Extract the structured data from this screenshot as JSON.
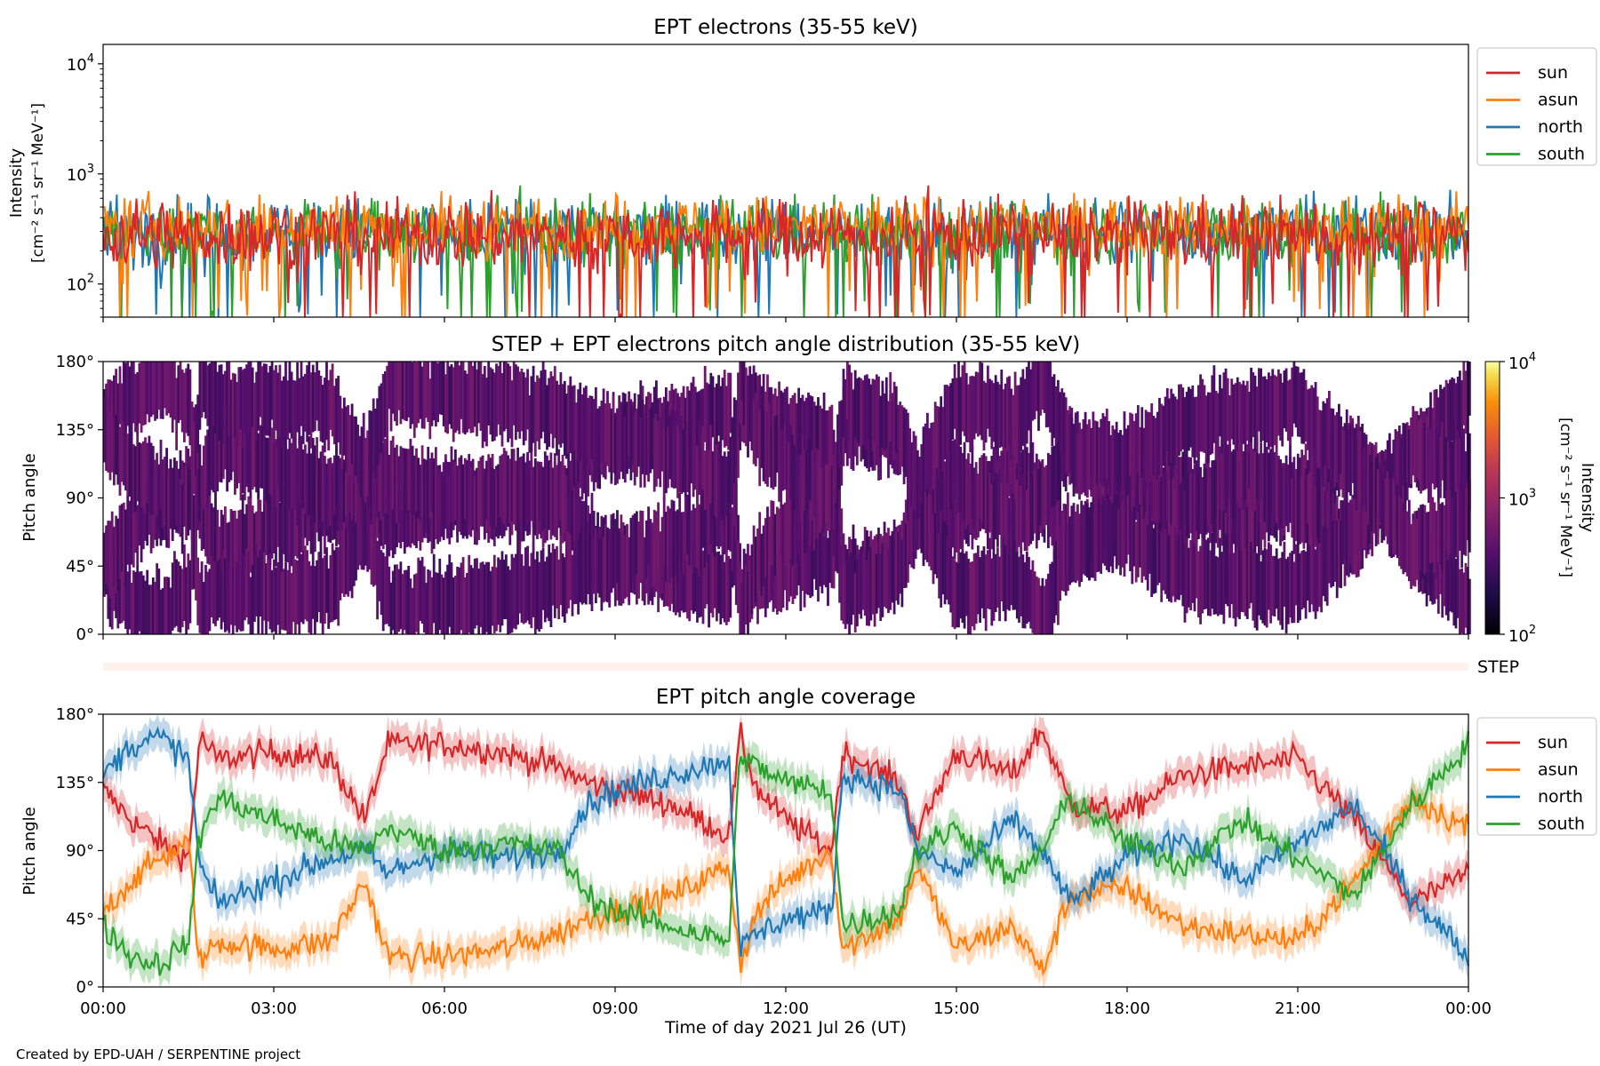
{
  "colors": {
    "sun": "#d62728",
    "asun": "#ff7f0e",
    "north": "#1f77b4",
    "south": "#2ca02c",
    "axis": "#000000",
    "step_strip": "#fdf1ea"
  },
  "chart_data": [
    {
      "type": "line",
      "title": "EPT electrons (35-55 keV)",
      "ylabel": [
        "Intensity",
        "[cm⁻² s⁻¹ sr⁻¹ MeV⁻¹]"
      ],
      "yscale": "log",
      "ylim": [
        50,
        15000
      ],
      "yticks": [
        {
          "value": 100,
          "base": "10",
          "exp": "2"
        },
        {
          "value": 1000,
          "base": "10",
          "exp": "3"
        },
        {
          "value": 10000,
          "base": "10",
          "exp": "4"
        }
      ],
      "xlim_hours": [
        0,
        24
      ],
      "legend": [
        "sun",
        "asun",
        "north",
        "south"
      ],
      "legend_position": "outside right, top",
      "series_note": "noisy intensity around 2×10² – 5×10² for all four viewing directions",
      "series": [
        {
          "name": "north",
          "typical": 300,
          "spread": 0.28
        },
        {
          "name": "south",
          "typical": 300,
          "spread": 0.28
        },
        {
          "name": "asun",
          "typical": 330,
          "spread": 0.26
        },
        {
          "name": "sun",
          "typical": 280,
          "spread": 0.3
        }
      ]
    },
    {
      "type": "heatmap",
      "title": "STEP + EPT electrons pitch angle distribution (35-55 keV)",
      "ylabel": "Pitch angle",
      "ylim": [
        0,
        180
      ],
      "yticks": [
        "0°",
        "45°",
        "90°",
        "135°",
        "180°"
      ],
      "xlim_hours": [
        0,
        24
      ],
      "colorbar": {
        "label": [
          "Intensity",
          "[cm⁻² s⁻¹ sr⁻¹ MeV⁻¹]"
        ],
        "scale": "log",
        "range": [
          100,
          10000
        ],
        "ticks": [
          {
            "base": "10",
            "exp": "2"
          },
          {
            "base": "10",
            "exp": "3"
          },
          {
            "base": "10",
            "exp": "4"
          }
        ],
        "colormap": "inferno"
      },
      "note": "coverage bands of the four telescopes follow the pitch-angle coverage panel below"
    },
    {
      "type": "strip",
      "label": "STEP"
    },
    {
      "type": "line",
      "title": "EPT pitch angle coverage",
      "ylabel": "Pitch angle",
      "ylim": [
        0,
        180
      ],
      "yticks": [
        "0°",
        "45°",
        "90°",
        "135°",
        "180°"
      ],
      "xlim_hours": [
        0,
        24
      ],
      "xticks": [
        "00:00",
        "03:00",
        "06:00",
        "09:00",
        "12:00",
        "15:00",
        "18:00",
        "21:00",
        "00:00"
      ],
      "xlabel": "Time of day 2021 Jul 26 (UT)",
      "legend": [
        "sun",
        "asun",
        "north",
        "south"
      ],
      "legend_position": "outside right, top",
      "band_halfwidth_deg": 10,
      "series": [
        {
          "name": "sun",
          "hours": [
            0,
            0.5,
            1,
            1.5,
            1.7,
            2,
            3,
            4,
            4.6,
            5,
            6,
            7,
            8,
            8.5,
            9,
            10,
            11,
            11.2,
            11.5,
            12,
            12.8,
            13,
            14,
            14.3,
            15,
            16,
            16.5,
            17,
            18,
            19,
            20,
            21,
            22,
            23,
            24
          ],
          "values": [
            130,
            110,
            95,
            85,
            165,
            150,
            155,
            150,
            110,
            160,
            160,
            155,
            145,
            135,
            130,
            120,
            100,
            165,
            130,
            110,
            90,
            155,
            135,
            100,
            155,
            140,
            170,
            120,
            115,
            140,
            145,
            150,
            110,
            55,
            75
          ]
        },
        {
          "name": "asun",
          "hours": [
            0,
            0.5,
            1,
            1.5,
            1.7,
            2,
            3,
            4,
            4.6,
            5,
            6,
            7,
            8,
            8.5,
            9,
            10,
            11,
            11.2,
            11.5,
            12,
            12.8,
            13,
            14,
            14.3,
            15,
            16,
            16.5,
            17,
            18,
            19,
            20,
            21,
            22,
            23,
            24
          ],
          "values": [
            50,
            70,
            85,
            95,
            15,
            30,
            25,
            30,
            70,
            20,
            20,
            25,
            35,
            45,
            50,
            60,
            80,
            15,
            50,
            70,
            90,
            25,
            45,
            80,
            25,
            40,
            10,
            60,
            65,
            40,
            35,
            30,
            70,
            125,
            105
          ]
        },
        {
          "name": "north",
          "hours": [
            0,
            0.5,
            1,
            1.5,
            1.7,
            2,
            3,
            4,
            4.6,
            5,
            6,
            7,
            8,
            8.5,
            9,
            10,
            11,
            11.2,
            11.5,
            12,
            12.8,
            13,
            14,
            14.3,
            15,
            16,
            16.5,
            17,
            18,
            19,
            20,
            21,
            22,
            23,
            24
          ],
          "values": [
            140,
            160,
            165,
            150,
            80,
            55,
            70,
            85,
            90,
            75,
            90,
            85,
            90,
            120,
            130,
            140,
            150,
            25,
            35,
            45,
            50,
            140,
            130,
            90,
            75,
            110,
            90,
            55,
            85,
            100,
            70,
            95,
            120,
            60,
            20
          ]
        },
        {
          "name": "south",
          "hours": [
            0,
            0.5,
            1,
            1.5,
            1.7,
            2,
            3,
            4,
            4.6,
            5,
            6,
            7,
            8,
            8.5,
            9,
            10,
            11,
            11.2,
            11.5,
            12,
            12.8,
            13,
            14,
            14.3,
            15,
            16,
            16.5,
            17,
            18,
            19,
            20,
            21,
            22,
            23,
            24
          ],
          "values": [
            40,
            20,
            15,
            30,
            100,
            125,
            110,
            95,
            90,
            105,
            90,
            95,
            90,
            60,
            50,
            40,
            30,
            155,
            145,
            135,
            130,
            40,
            50,
            90,
            105,
            70,
            90,
            125,
            95,
            80,
            110,
            85,
            60,
            120,
            160
          ]
        }
      ]
    }
  ],
  "footer": {
    "credit": "Created by EPD-UAH / SERPENTINE project"
  }
}
